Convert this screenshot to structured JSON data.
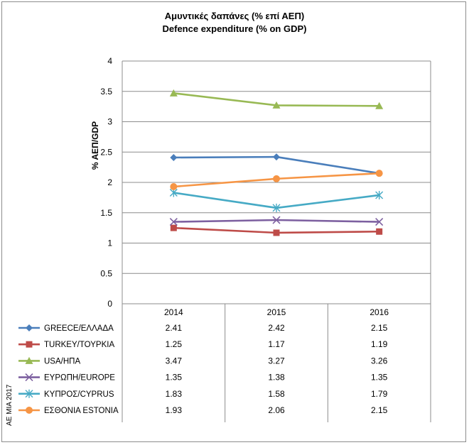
{
  "chart_data": {
    "type": "line",
    "title": "Αμυντικές δαπάνες (% επί ΑΕΠ)",
    "subtitle": "Defence expenditure (% on GDP)",
    "ylabel": "% ΑΕΠ/GDP",
    "xlabel": "",
    "ylim": [
      0,
      4
    ],
    "yticks": [
      "0",
      "0.5",
      "1",
      "1.5",
      "2",
      "2.5",
      "3",
      "3.5",
      "4"
    ],
    "categories": [
      "2014",
      "2015",
      "2016"
    ],
    "grid": true,
    "legend": "bottom data table",
    "series": [
      {
        "name": "GREECE/ΕΛΛΑΔΑ",
        "values": [
          2.41,
          2.42,
          2.15
        ],
        "labels": [
          "2.41",
          "2.42",
          "2.15"
        ],
        "color": "#4a7ebb",
        "marker": "diamond"
      },
      {
        "name": "TURKEY/ΤΟΥΡΚΙΑ",
        "values": [
          1.25,
          1.17,
          1.19
        ],
        "labels": [
          "1.25",
          "1.17",
          "1.19"
        ],
        "color": "#be4b48",
        "marker": "square"
      },
      {
        "name": "USA/ΗΠΑ",
        "values": [
          3.47,
          3.27,
          3.26
        ],
        "labels": [
          "3.47",
          "3.27",
          "3.26"
        ],
        "color": "#98b954",
        "marker": "triangle"
      },
      {
        "name": "ΕΥΡΩΠΗ/EUROPE",
        "values": [
          1.35,
          1.38,
          1.35
        ],
        "labels": [
          "1.35",
          "1.38",
          "1.35"
        ],
        "color": "#7d60a0",
        "marker": "x"
      },
      {
        "name": "ΚΥΠΡΟΣ/CYPRUS",
        "values": [
          1.83,
          1.58,
          1.79
        ],
        "labels": [
          "1.83",
          "1.58",
          "1.79"
        ],
        "color": "#46aac5",
        "marker": "star"
      },
      {
        "name": "ΕΣΘΟΝΙΑ ESTONIA",
        "values": [
          1.93,
          2.06,
          2.15
        ],
        "labels": [
          "1.93",
          "2.06",
          "2.15"
        ],
        "color": "#f69545",
        "marker": "circle"
      }
    ]
  },
  "credit": "ΑΕ ΜΙΑ 2017"
}
